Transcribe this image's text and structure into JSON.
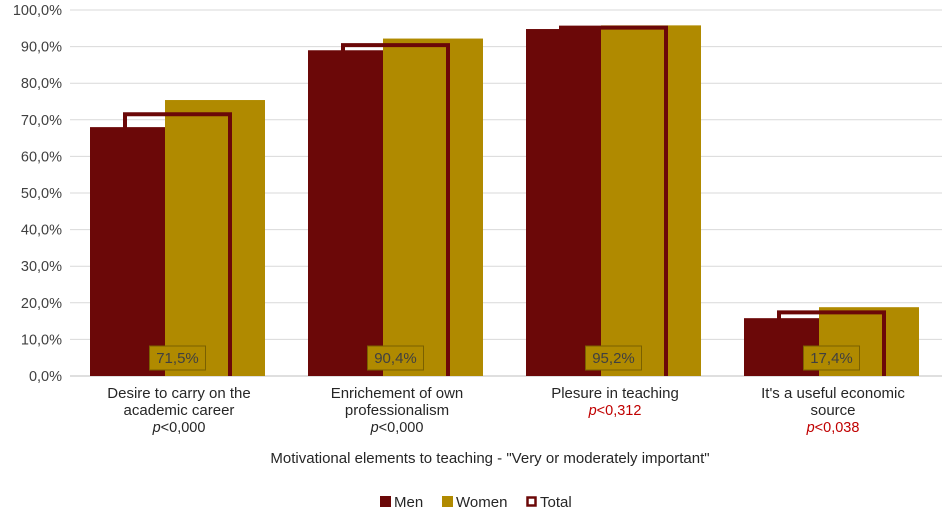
{
  "chart_data": {
    "type": "bar",
    "title": "",
    "xlabel": "Motivational elements to teaching - \"Very or moderately important\"",
    "ylabel": "",
    "ylim": [
      0,
      100
    ],
    "yticks": [
      "0,0%",
      "10,0%",
      "20,0%",
      "30,0%",
      "40,0%",
      "50,0%",
      "60,0%",
      "70,0%",
      "80,0%",
      "90,0%",
      "100,0%"
    ],
    "grid": true,
    "legend_position": "bottom",
    "categories": [
      {
        "lines": [
          "Desire to carry on the",
          "academic career"
        ],
        "p_prefix": "p",
        "p_value": "<0,000",
        "p_significant": false
      },
      {
        "lines": [
          "Enrichement of own",
          "professionalism"
        ],
        "p_prefix": "p",
        "p_value": "<0,000",
        "p_significant": false
      },
      {
        "lines": [
          "Plesure in teaching"
        ],
        "p_prefix": "p",
        "p_value": "<0,312",
        "p_significant": true
      },
      {
        "lines": [
          "It's a useful economic",
          "source"
        ],
        "p_prefix": "p",
        "p_value": "<0,038",
        "p_significant": true
      }
    ],
    "series": [
      {
        "name": "Men",
        "values": [
          68.0,
          89.0,
          94.8,
          15.8
        ],
        "color": "#6b0808",
        "style": "filled"
      },
      {
        "name": "Women",
        "values": [
          75.4,
          92.2,
          95.8,
          18.8
        ],
        "color": "#b08a00",
        "style": "filled"
      },
      {
        "name": "Total",
        "values": [
          71.5,
          90.4,
          95.2,
          17.4
        ],
        "color": "#6b0808",
        "style": "outline"
      }
    ],
    "total_labels": [
      "71,5%",
      "90,4%",
      "95,2%",
      "17,4%"
    ],
    "colors": {
      "significant_p": "#c00000",
      "normal_p": "#262626",
      "grid": "#d9d9d9",
      "label_bg": "#b08a00",
      "label_border": "#7a6000"
    }
  }
}
